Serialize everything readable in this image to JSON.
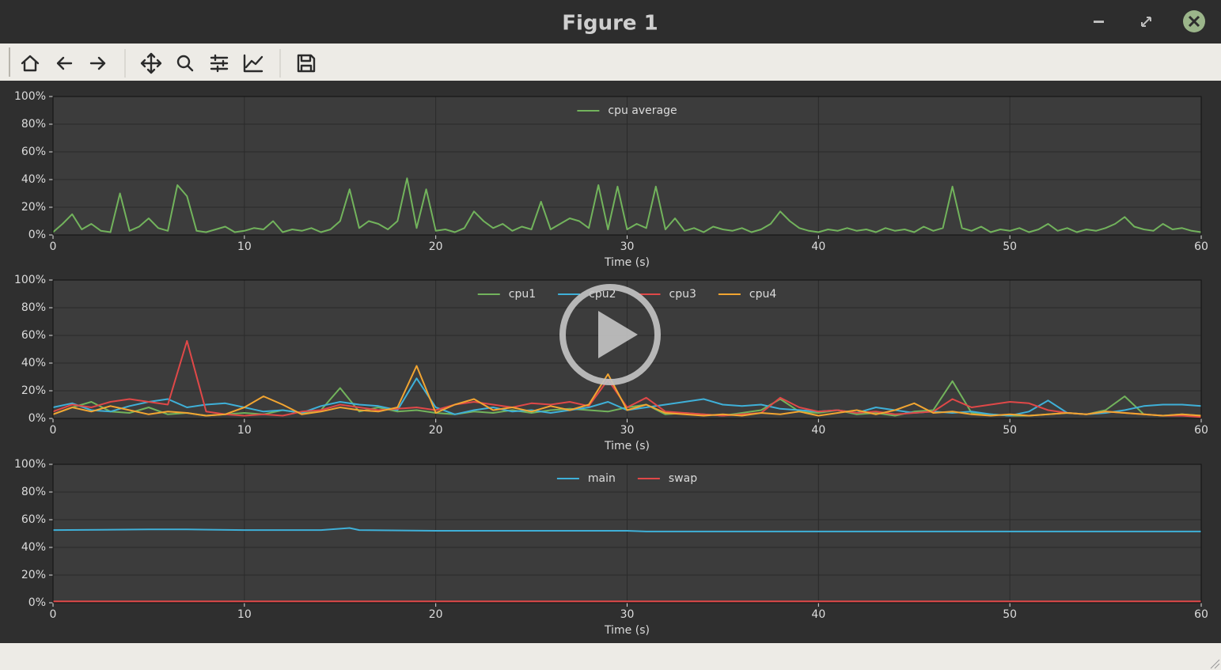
{
  "window_title": "Figure 1",
  "chart_data": [
    {
      "type": "line",
      "xlabel": "Time (s)",
      "legend": "upper center",
      "grid": true,
      "xlim": [
        0,
        60
      ],
      "xticks": [
        0,
        10,
        20,
        30,
        40,
        50,
        60
      ],
      "ylim": [
        0,
        100
      ],
      "yticks": [
        {
          "value": 0,
          "label": "0%"
        },
        {
          "value": 20,
          "label": "20%"
        },
        {
          "value": 40,
          "label": "40%"
        },
        {
          "value": 60,
          "label": "60%"
        },
        {
          "value": 80,
          "label": "80%"
        },
        {
          "value": 100,
          "label": "100%"
        }
      ],
      "x": [
        0,
        0.5,
        1,
        1.5,
        2,
        2.5,
        3,
        3.5,
        4,
        4.5,
        5,
        5.5,
        6,
        6.5,
        7,
        7.5,
        8,
        8.5,
        9,
        9.5,
        10,
        10.5,
        11,
        11.5,
        12,
        12.5,
        13,
        13.5,
        14,
        14.5,
        15,
        15.5,
        16,
        16.5,
        17,
        17.5,
        18,
        18.5,
        19,
        19.5,
        20,
        20.5,
        21,
        21.5,
        22,
        22.5,
        23,
        23.5,
        24,
        24.5,
        25,
        25.5,
        26,
        26.5,
        27,
        27.5,
        28,
        28.5,
        29,
        29.5,
        30,
        30.5,
        31,
        31.5,
        32,
        32.5,
        33,
        33.5,
        34,
        34.5,
        35,
        35.5,
        36,
        36.5,
        37,
        37.5,
        38,
        38.5,
        39,
        39.5,
        40,
        40.5,
        41,
        41.5,
        42,
        42.5,
        43,
        43.5,
        44,
        44.5,
        45,
        45.5,
        46,
        46.5,
        47,
        47.5,
        48,
        48.5,
        49,
        49.5,
        50,
        50.5,
        51,
        51.5,
        52,
        52.5,
        53,
        53.5,
        54,
        54.5,
        55,
        55.5,
        56,
        56.5,
        57,
        57.5,
        58,
        58.5,
        59,
        59.5,
        60
      ],
      "series": [
        {
          "name": "cpu average",
          "color": "#72b35c",
          "values": [
            2,
            8,
            15,
            4,
            8,
            3,
            2,
            30,
            3,
            6,
            12,
            5,
            3,
            36,
            28,
            3,
            2,
            4,
            6,
            2,
            3,
            5,
            4,
            10,
            2,
            4,
            3,
            5,
            2,
            4,
            10,
            33,
            5,
            10,
            8,
            4,
            10,
            41,
            5,
            33,
            3,
            4,
            2,
            5,
            17,
            10,
            5,
            8,
            3,
            6,
            4,
            24,
            4,
            8,
            12,
            10,
            5,
            36,
            4,
            35,
            4,
            8,
            5,
            35,
            4,
            12,
            3,
            5,
            2,
            6,
            4,
            3,
            5,
            2,
            4,
            8,
            17,
            10,
            5,
            3,
            2,
            4,
            3,
            5,
            3,
            4,
            2,
            5,
            3,
            4,
            2,
            6,
            3,
            5,
            35,
            5,
            3,
            6,
            2,
            4,
            3,
            5,
            2,
            4,
            8,
            3,
            5,
            2,
            4,
            3,
            5,
            8,
            13,
            6,
            4,
            3,
            8,
            4,
            5,
            3,
            2
          ]
        }
      ]
    },
    {
      "type": "line",
      "xlabel": "Time (s)",
      "legend": "upper center",
      "grid": true,
      "xlim": [
        0,
        60
      ],
      "xticks": [
        0,
        10,
        20,
        30,
        40,
        50,
        60
      ],
      "ylim": [
        0,
        100
      ],
      "yticks": [
        {
          "value": 0,
          "label": "0%"
        },
        {
          "value": 20,
          "label": "20%"
        },
        {
          "value": 40,
          "label": "40%"
        },
        {
          "value": 60,
          "label": "60%"
        },
        {
          "value": 80,
          "label": "80%"
        },
        {
          "value": 100,
          "label": "100%"
        }
      ],
      "x": [
        0,
        1,
        2,
        3,
        4,
        5,
        6,
        7,
        8,
        9,
        10,
        11,
        12,
        13,
        14,
        15,
        16,
        17,
        18,
        19,
        20,
        21,
        22,
        23,
        24,
        25,
        26,
        27,
        28,
        29,
        30,
        31,
        32,
        33,
        34,
        35,
        36,
        37,
        38,
        39,
        40,
        41,
        42,
        43,
        44,
        45,
        46,
        47,
        48,
        49,
        50,
        51,
        52,
        53,
        54,
        55,
        56,
        57,
        58,
        59,
        60
      ],
      "series": [
        {
          "name": "cpu1",
          "color": "#72b35c",
          "values": [
            3,
            8,
            12,
            5,
            4,
            8,
            3,
            4,
            2,
            3,
            4,
            3,
            6,
            4,
            6,
            22,
            5,
            8,
            5,
            6,
            4,
            3,
            5,
            4,
            6,
            4,
            6,
            7,
            6,
            5,
            8,
            10,
            3,
            4,
            3,
            2,
            4,
            6,
            14,
            5,
            4,
            6,
            3,
            4,
            2,
            5,
            6,
            27,
            4,
            3,
            2,
            2,
            3,
            4,
            3,
            6,
            16,
            3,
            2,
            3,
            2
          ]
        },
        {
          "name": "cpu2",
          "color": "#3fb0d8",
          "values": [
            8,
            11,
            6,
            5,
            9,
            12,
            14,
            8,
            10,
            11,
            8,
            5,
            6,
            4,
            9,
            12,
            10,
            9,
            6,
            29,
            8,
            3,
            6,
            8,
            5,
            6,
            4,
            6,
            8,
            12,
            6,
            8,
            10,
            12,
            14,
            10,
            9,
            10,
            7,
            6,
            5,
            6,
            4,
            8,
            6,
            4,
            5,
            4,
            5,
            3,
            2,
            5,
            13,
            4,
            3,
            4,
            6,
            9,
            10,
            10,
            9
          ]
        },
        {
          "name": "cpu3",
          "color": "#e04848",
          "values": [
            5,
            10,
            8,
            12,
            14,
            12,
            10,
            56,
            5,
            3,
            2,
            3,
            2,
            5,
            6,
            10,
            8,
            6,
            7,
            8,
            6,
            10,
            12,
            10,
            8,
            11,
            10,
            12,
            9,
            28,
            8,
            15,
            5,
            4,
            3,
            2,
            3,
            4,
            15,
            8,
            5,
            6,
            4,
            5,
            3,
            4,
            5,
            14,
            8,
            10,
            12,
            11,
            6,
            4,
            3,
            5,
            4,
            3,
            2,
            2,
            1
          ]
        },
        {
          "name": "cpu4",
          "color": "#f2a531",
          "values": [
            3,
            8,
            5,
            9,
            6,
            3,
            5,
            4,
            2,
            3,
            8,
            16,
            10,
            3,
            5,
            8,
            6,
            5,
            8,
            38,
            4,
            10,
            14,
            6,
            8,
            5,
            9,
            6,
            10,
            32,
            6,
            10,
            4,
            3,
            2,
            3,
            2,
            4,
            3,
            5,
            2,
            4,
            6,
            3,
            6,
            11,
            4,
            5,
            3,
            2,
            3,
            2,
            3,
            4,
            3,
            5,
            4,
            3,
            2,
            3,
            2
          ]
        }
      ]
    },
    {
      "type": "line",
      "xlabel": "Time (s)",
      "legend": "upper center",
      "grid": true,
      "xlim": [
        0,
        60
      ],
      "xticks": [
        0,
        10,
        20,
        30,
        40,
        50,
        60
      ],
      "ylim": [
        0,
        100
      ],
      "yticks": [
        {
          "value": 0,
          "label": "0%"
        },
        {
          "value": 20,
          "label": "20%"
        },
        {
          "value": 40,
          "label": "40%"
        },
        {
          "value": 60,
          "label": "60%"
        },
        {
          "value": 80,
          "label": "80%"
        },
        {
          "value": 100,
          "label": "100%"
        }
      ],
      "x": [
        0,
        5,
        7,
        10,
        14,
        15.5,
        16,
        20,
        30,
        31,
        40,
        50,
        60
      ],
      "series": [
        {
          "name": "main",
          "color": "#3fb0d8",
          "values": [
            52.5,
            53,
            53,
            52.5,
            52.5,
            54,
            52.5,
            52,
            52,
            51.5,
            51.5,
            51.5,
            51.5
          ]
        },
        {
          "name": "swap",
          "color": "#e04848",
          "values": [
            1,
            1,
            1,
            1,
            1,
            1,
            1,
            1,
            1,
            1,
            1,
            1,
            1
          ]
        }
      ]
    }
  ]
}
